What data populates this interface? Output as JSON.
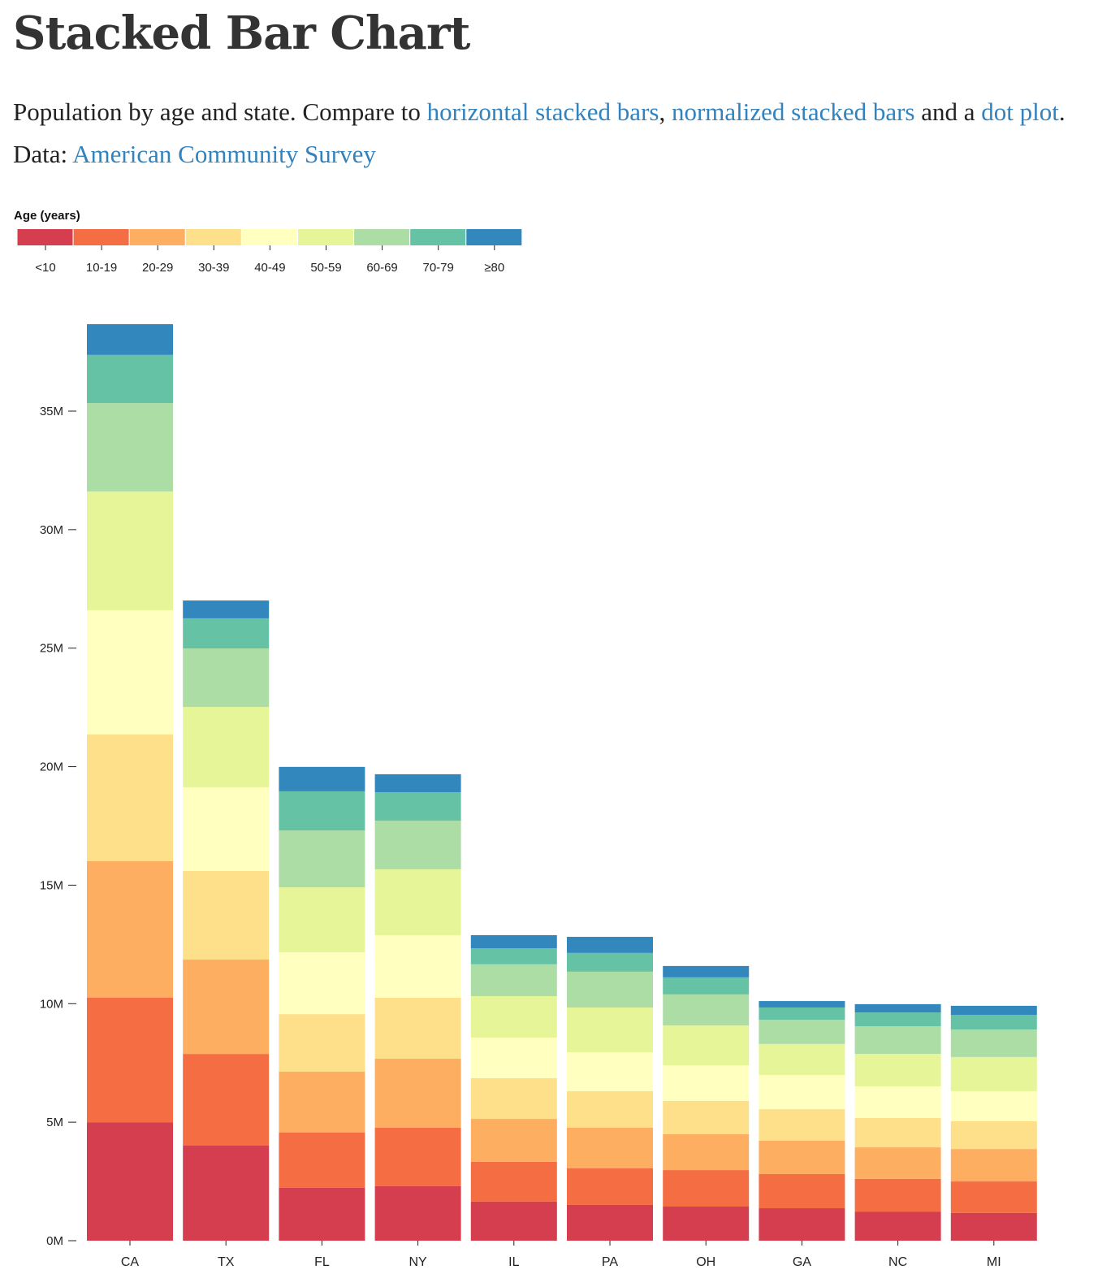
{
  "title": "Stacked Bar Chart",
  "description": {
    "t1": "Population by age and state. Compare to ",
    "link1": "horizontal stacked bars",
    "t2": ", ",
    "link2": "normalized stacked bars",
    "t3": " and a ",
    "link3": "dot plot",
    "t4": ". Data: ",
    "link4": "American Community Survey"
  },
  "chart_data": {
    "type": "bar",
    "stacked": true,
    "legend_title": "Age (years)",
    "legend_position": "top-left",
    "categories": [
      "CA",
      "TX",
      "FL",
      "NY",
      "IL",
      "PA",
      "OH",
      "GA",
      "NC",
      "MI"
    ],
    "y_ticks": [
      "0M",
      "5M",
      "10M",
      "15M",
      "20M",
      "25M",
      "30M",
      "35M"
    ],
    "y_tick_values": [
      0,
      5,
      10,
      15,
      20,
      25,
      30,
      35
    ],
    "ylim": [
      0,
      38.7
    ],
    "y_unit": "millions",
    "grid": false,
    "series": [
      {
        "name": "<10",
        "color": "#d53e4f",
        "values": [
          5.0,
          4.01,
          2.23,
          2.3,
          1.65,
          1.51,
          1.44,
          1.37,
          1.23,
          1.17
        ]
      },
      {
        "name": "10-19",
        "color": "#f46d43",
        "values": [
          5.25,
          3.87,
          2.33,
          2.47,
          1.68,
          1.54,
          1.54,
          1.44,
          1.38,
          1.33
        ]
      },
      {
        "name": "20-29",
        "color": "#fdae61",
        "values": [
          5.76,
          3.98,
          2.57,
          2.91,
          1.81,
          1.72,
          1.51,
          1.41,
          1.33,
          1.37
        ]
      },
      {
        "name": "30-39",
        "color": "#fee08b",
        "values": [
          5.35,
          3.74,
          2.43,
          2.57,
          1.72,
          1.54,
          1.41,
          1.33,
          1.24,
          1.17
        ]
      },
      {
        "name": "40-49",
        "color": "#ffffbf",
        "values": [
          5.24,
          3.53,
          2.61,
          2.64,
          1.71,
          1.64,
          1.5,
          1.44,
          1.33,
          1.27
        ]
      },
      {
        "name": "50-59",
        "color": "#e6f598",
        "values": [
          5.01,
          3.39,
          2.74,
          2.78,
          1.75,
          1.89,
          1.68,
          1.31,
          1.37,
          1.44
        ]
      },
      {
        "name": "60-69",
        "color": "#abdda4",
        "values": [
          3.73,
          2.47,
          2.4,
          2.05,
          1.34,
          1.51,
          1.31,
          1.02,
          1.17,
          1.16
        ]
      },
      {
        "name": "70-79",
        "color": "#66c2a5",
        "values": [
          2.03,
          1.27,
          1.65,
          1.2,
          0.68,
          0.79,
          0.72,
          0.52,
          0.58,
          0.62
        ]
      },
      {
        "name": "≥80",
        "color": "#3288bd",
        "values": [
          1.3,
          0.75,
          1.03,
          0.76,
          0.55,
          0.68,
          0.48,
          0.27,
          0.35,
          0.38
        ]
      }
    ]
  }
}
